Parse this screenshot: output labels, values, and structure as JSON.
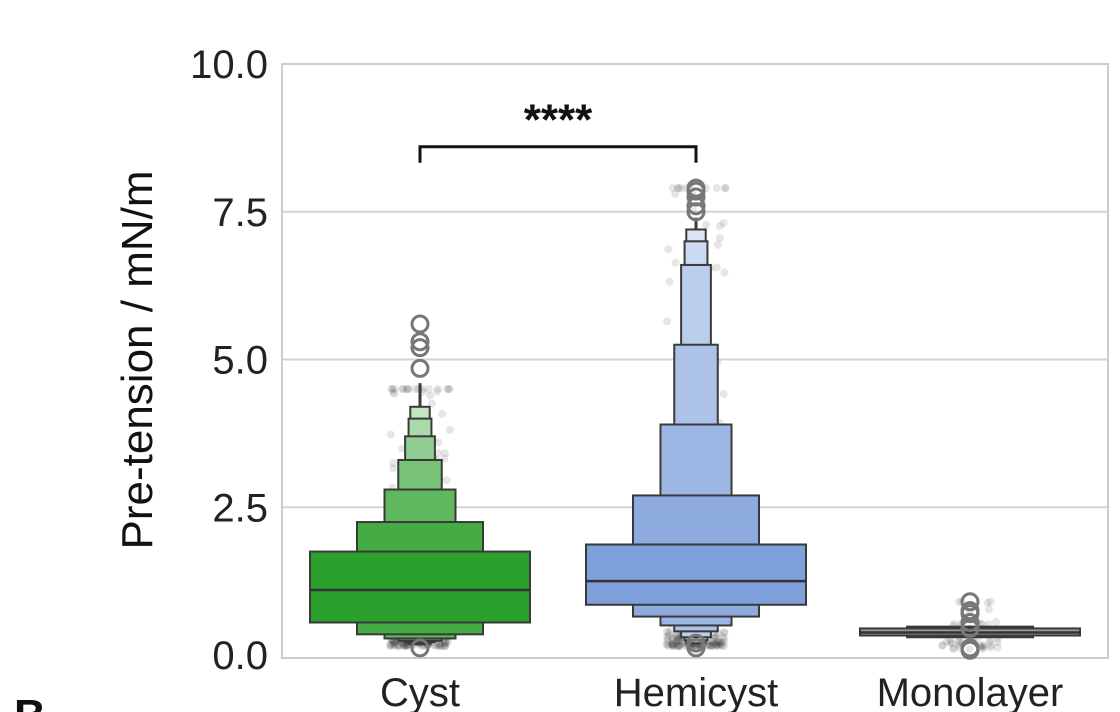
{
  "panel_letter": "B",
  "chart_data": {
    "type": "boxen",
    "ylabel": "Pre-tension  /  mN/m",
    "xlabel": "",
    "ylim": [
      0,
      10
    ],
    "yticks": [
      "0.0",
      "2.5",
      "5.0",
      "7.5",
      "10.0"
    ],
    "grid": "horizontal",
    "categories": [
      "Cyst",
      "Hemicyst",
      "Monolayer"
    ],
    "groups": [
      {
        "name": "Cyst",
        "color": "#2ca02c",
        "median": 1.1,
        "boxes": [
          [
            0.55,
            1.75
          ],
          [
            0.35,
            2.25
          ],
          [
            0.28,
            2.8
          ],
          [
            0.24,
            3.3
          ],
          [
            0.22,
            3.7
          ],
          [
            0.2,
            4.0
          ],
          [
            0.18,
            4.2
          ]
        ],
        "whisker_top": 4.6,
        "outliers": [
          4.85,
          5.2,
          5.3,
          5.6,
          0.12
        ],
        "points_range": [
          0.15,
          4.5
        ]
      },
      {
        "name": "Hemicyst",
        "color": "#7da0db",
        "median": 1.25,
        "boxes": [
          [
            0.85,
            1.87
          ],
          [
            0.65,
            2.7
          ],
          [
            0.5,
            3.9
          ],
          [
            0.4,
            5.25
          ],
          [
            0.3,
            6.6
          ],
          [
            0.25,
            7.0
          ],
          [
            0.2,
            7.2
          ]
        ],
        "whisker_top": 7.4,
        "outliers": [
          7.5,
          7.6,
          7.75,
          7.85,
          7.9,
          0.12,
          0.2
        ],
        "points_range": [
          0.15,
          7.9
        ]
      },
      {
        "name": "Monolayer",
        "color": "#999999",
        "median": 0.38,
        "boxes": [
          [
            0.33,
            0.45
          ],
          [
            0.3,
            0.48
          ]
        ],
        "whisker_top": 0.5,
        "outliers": [
          0.08,
          0.12,
          0.45,
          0.55,
          0.7,
          0.75,
          0.9
        ],
        "points_range": [
          0.1,
          0.9
        ]
      }
    ],
    "annotation": {
      "text": "****",
      "between": [
        "Cyst",
        "Hemicyst"
      ],
      "y": 8.6
    }
  }
}
